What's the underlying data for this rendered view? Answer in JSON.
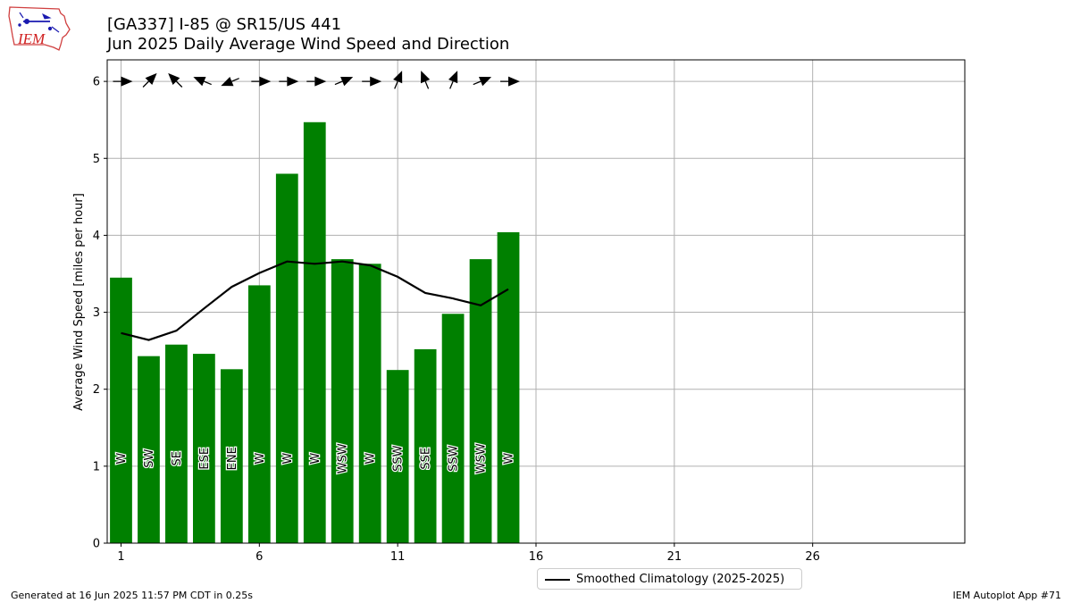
{
  "logo": {
    "text": "IEM"
  },
  "header": {
    "title_line1": "[GA337] I-85 @ SR15/US 441",
    "title_line2": "Jun 2025 Daily Average Wind Speed and Direction"
  },
  "chart_data": {
    "type": "bar",
    "title": "[GA337] I-85 @ SR15/US 441 Jun 2025 Daily Average Wind Speed and Direction",
    "ylabel": "Average Wind Speed [miles per hour]",
    "xlabel": "",
    "xlim": [
      0.5,
      31.5
    ],
    "ylim": [
      0,
      6.28
    ],
    "xticks": [
      1,
      6,
      11,
      16,
      21,
      26
    ],
    "yticks": [
      0,
      1,
      2,
      3,
      4,
      5,
      6
    ],
    "grid": true,
    "bar_color": "#008000",
    "days": [
      1,
      2,
      3,
      4,
      5,
      6,
      7,
      8,
      9,
      10,
      11,
      12,
      13,
      14,
      15
    ],
    "values": [
      3.45,
      2.43,
      2.58,
      2.46,
      2.26,
      3.35,
      4.8,
      5.47,
      3.69,
      3.63,
      2.25,
      2.52,
      2.98,
      3.69,
      4.04
    ],
    "directions": [
      "W",
      "SW",
      "SE",
      "ESE",
      "ENE",
      "W",
      "W",
      "W",
      "WSW",
      "W",
      "SSW",
      "SSE",
      "SSW",
      "WSW",
      "W"
    ],
    "direction_degrees": [
      270,
      225,
      135,
      112.5,
      67.5,
      270,
      270,
      270,
      247.5,
      270,
      202.5,
      157.5,
      202.5,
      247.5,
      270
    ],
    "climatology": {
      "name": "Smoothed Climatology (2025-2025)",
      "color": "#000000",
      "x": [
        1,
        2,
        3,
        4,
        5,
        6,
        7,
        8,
        9,
        10,
        11,
        12,
        13,
        14,
        15
      ],
      "values": [
        2.73,
        2.64,
        2.76,
        3.05,
        3.33,
        3.51,
        3.66,
        3.63,
        3.66,
        3.61,
        3.46,
        3.25,
        3.18,
        3.09,
        3.3
      ]
    },
    "legend_position": "below"
  },
  "footer": {
    "generated": "Generated at 16 Jun 2025 11:57 PM CDT in 0.25s",
    "app": "IEM Autoplot App #71"
  }
}
